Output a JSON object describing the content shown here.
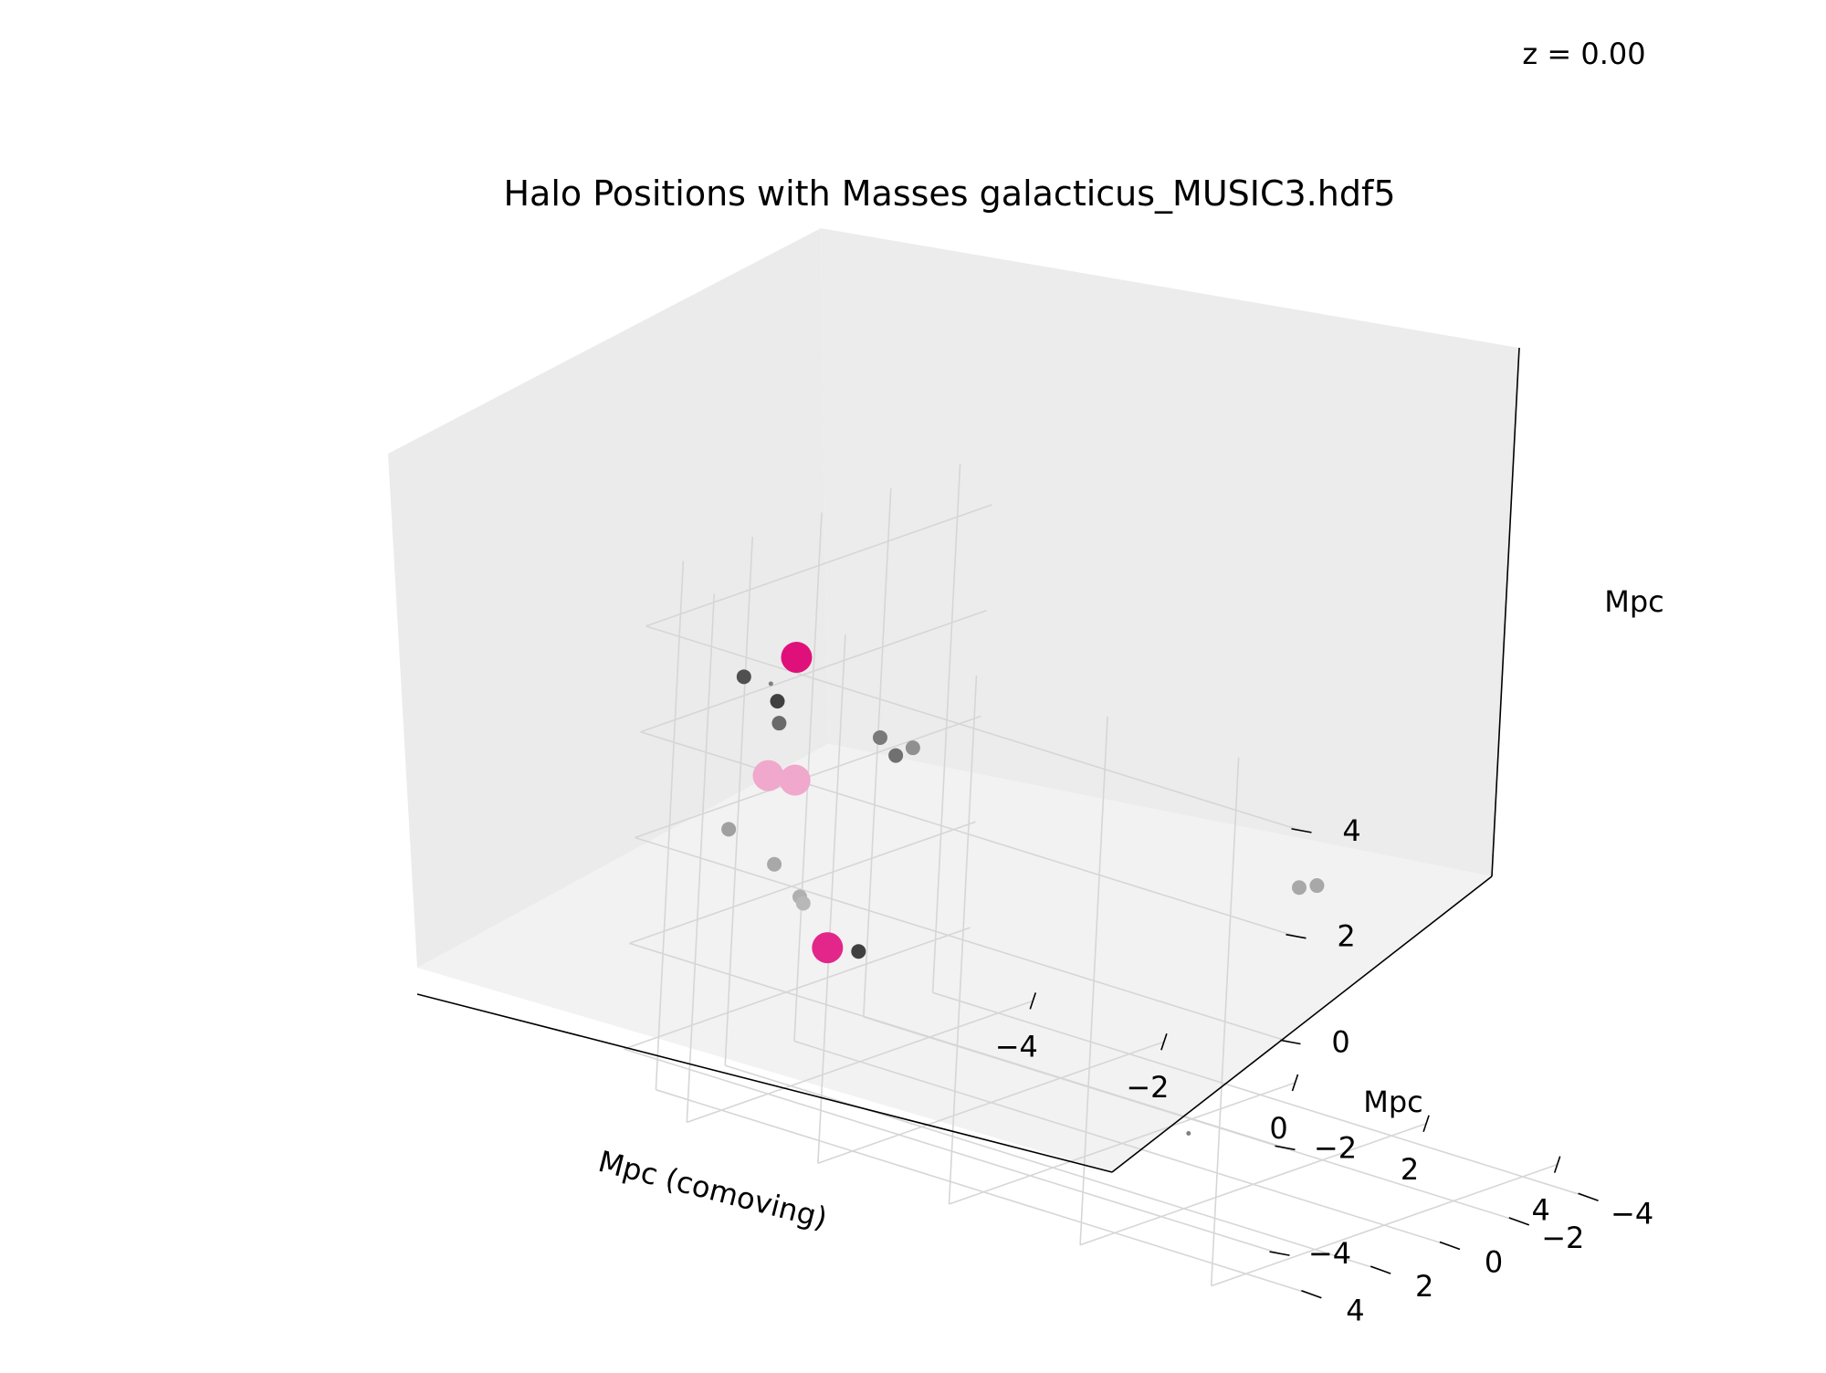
{
  "redshift_label": "z = 0.00",
  "chart_data": {
    "type": "scatter",
    "projection": "3d",
    "title": "Halo Positions with Masses galacticus_MUSIC3.hdf5",
    "xlabel": "Mpc (comoving)",
    "ylabel": "Mpc",
    "zlabel": "Mpc",
    "xlim": [
      -5,
      5
    ],
    "ylim": [
      -5,
      5
    ],
    "zlim": [
      -5,
      5
    ],
    "x_ticks": [
      "−4",
      "−2",
      "0",
      "2",
      "4"
    ],
    "y_ticks": [
      "−4",
      "−2",
      "0",
      "2",
      "4"
    ],
    "z_ticks": [
      "−4",
      "−2",
      "0",
      "2",
      "4"
    ],
    "grid": true,
    "points": [
      {
        "x": -4.5,
        "y": 1.5,
        "z": 2.8,
        "size": "large",
        "color": "#e0107a"
      },
      {
        "x": -4.6,
        "y": 1.8,
        "z": 2.0,
        "size": "small",
        "color": "#404040"
      },
      {
        "x": -4.0,
        "y": 4.0,
        "z": 3.2,
        "size": "small",
        "color": "#505050"
      },
      {
        "x": -4.2,
        "y": 2.5,
        "z": 1.9,
        "size": "small",
        "color": "#6a6a6a"
      },
      {
        "x": -4.1,
        "y": 3.0,
        "z": 2.8,
        "size": "tiny",
        "color": "#808080"
      },
      {
        "x": -3.2,
        "y": 4.7,
        "z": 1.8,
        "size": "large",
        "color": "#f0a8cc"
      },
      {
        "x": -3.0,
        "y": 4.3,
        "z": 1.7,
        "size": "large",
        "color": "#f0a8cc"
      },
      {
        "x": -1.5,
        "y": 4.8,
        "z": 3.2,
        "size": "small",
        "color": "#7a7a7a"
      },
      {
        "x": -1.2,
        "y": 4.9,
        "z": 3.0,
        "size": "small",
        "color": "#707070"
      },
      {
        "x": -1.0,
        "y": 4.8,
        "z": 3.2,
        "size": "small",
        "color": "#909090"
      },
      {
        "x": -3.6,
        "y": 5.0,
        "z": 0.7,
        "size": "small",
        "color": "#a0a0a0"
      },
      {
        "x": -3.5,
        "y": 3.8,
        "z": -0.2,
        "size": "small",
        "color": "#a8a8a8"
      },
      {
        "x": -3.5,
        "y": 3.0,
        "z": -1.0,
        "size": "small",
        "color": "#b0b0b0"
      },
      {
        "x": -3.8,
        "y": 2.3,
        "z": -1.4,
        "size": "small",
        "color": "#b8b8b8"
      },
      {
        "x": -3.3,
        "y": 2.5,
        "z": -2.0,
        "size": "large",
        "color": "#e3268a"
      },
      {
        "x": -3.8,
        "y": 0.6,
        "z": -2.7,
        "size": "small",
        "color": "#404040"
      },
      {
        "x": 1.5,
        "y": 1.0,
        "z": -4.0,
        "size": "tiny",
        "color": "#808080"
      },
      {
        "x": 4.5,
        "y": 4.0,
        "z": 2.5,
        "size": "small",
        "color": "#a8a8a8"
      },
      {
        "x": 4.0,
        "y": 2.5,
        "z": 2.0,
        "size": "small",
        "color": "#a8a8a8"
      }
    ]
  }
}
